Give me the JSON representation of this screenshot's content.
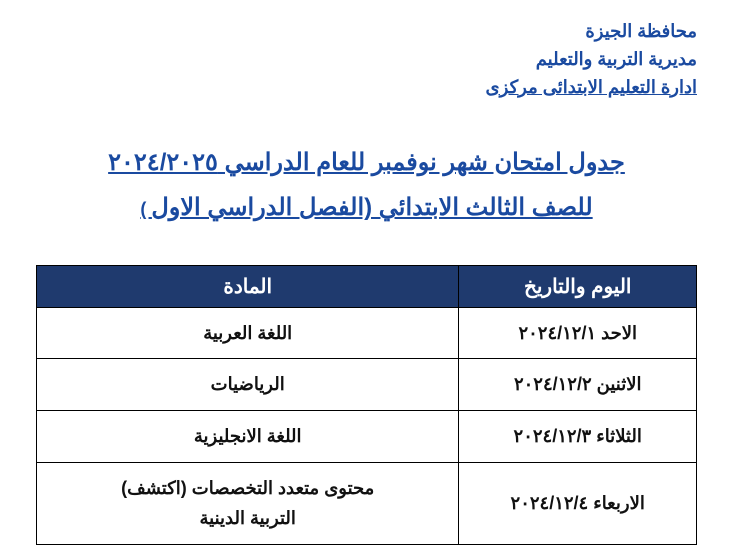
{
  "org": {
    "line1": "محافظة الجيزة",
    "line2": "مديرية التربية والتعليم",
    "line3": "ادارة التعليم الابتدائى مركزى"
  },
  "title": {
    "line1": "جدول امتحان شهر نوفمبر للعام الدراسي ٢٠٢٤/٢٠٢٥",
    "line2_main": "للصف الثالث الابتدائي (الفصل الدراسي الاول",
    "line2_close": " )"
  },
  "table": {
    "columns": [
      "اليوم والتاريخ",
      "المادة"
    ],
    "rows": [
      {
        "date": "الاحد ٢٠٢٤/١٢/١",
        "subject": "اللغة العربية"
      },
      {
        "date": "الاثنين ٢٠٢٤/١٢/٢",
        "subject": "الرياضيات"
      },
      {
        "date": "الثلاثاء ٢٠٢٤/١٢/٣",
        "subject": "اللغة الانجليزية"
      },
      {
        "date": "الاربعاء ٢٠٢٤/١٢/٤",
        "subject": "محتوى متعدد التخصصات (اكتشف)\nالتربية الدينية"
      }
    ],
    "header_bg": "#1f3a6e",
    "header_fg": "#ffffff",
    "border_color": "#000000",
    "cell_fg": "#111111",
    "col_widths_pct": [
      36,
      64
    ],
    "header_fontsize": 20,
    "cell_fontsize": 18
  },
  "colors": {
    "brand": "#1a4aa0",
    "page_bg": "#ffffff"
  },
  "typography": {
    "org_fontsize": 18,
    "title_fontsize": 24
  }
}
